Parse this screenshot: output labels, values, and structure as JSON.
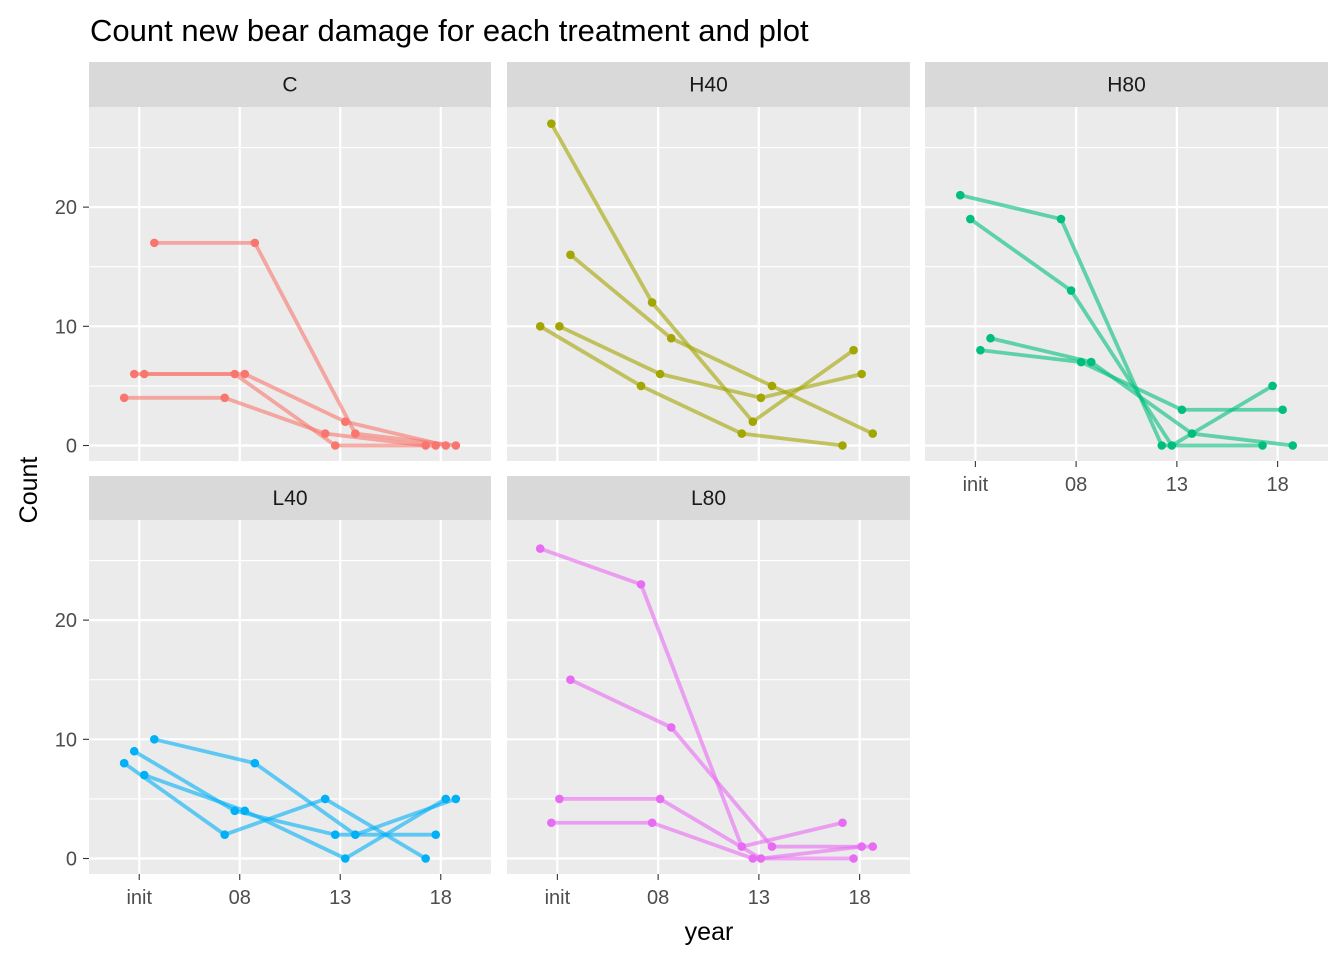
{
  "chart_data": {
    "type": "line",
    "title": "Count new bear damage for each treatment and plot",
    "xlabel": "year",
    "ylabel": "Count",
    "x_categories": [
      "init",
      "08",
      "13",
      "18"
    ],
    "y_ticks": [
      0,
      10,
      20
    ],
    "ylim": [
      -1.3,
      28.4
    ],
    "grid": true,
    "legend": "none",
    "series_colors": {
      "C": "#F8766D",
      "H40": "#A3A500",
      "H80": "#00BF7D",
      "L40": "#00B0F6",
      "L80": "#E76BF3"
    },
    "panels": [
      {
        "name": "C",
        "lines": [
          {
            "points": [
              [
                -0.15,
                4
              ],
              [
                0.85,
                4
              ],
              [
                1.85,
                1
              ],
              [
                2.85,
                0
              ]
            ]
          },
          {
            "points": [
              [
                -0.05,
                6
              ],
              [
                0.95,
                6
              ],
              [
                1.95,
                0
              ],
              [
                2.95,
                0
              ]
            ]
          },
          {
            "points": [
              [
                0.05,
                6
              ],
              [
                1.05,
                6
              ],
              [
                2.05,
                2
              ],
              [
                3.05,
                0
              ]
            ]
          },
          {
            "points": [
              [
                0.15,
                17
              ],
              [
                1.15,
                17
              ],
              [
                2.15,
                1
              ],
              [
                3.15,
                0
              ]
            ]
          }
        ]
      },
      {
        "name": "H40",
        "lines": [
          {
            "points": [
              [
                -0.17,
                10
              ],
              [
                0.83,
                5
              ],
              [
                1.83,
                1
              ],
              [
                2.83,
                0
              ]
            ]
          },
          {
            "points": [
              [
                -0.06,
                27
              ],
              [
                0.94,
                12
              ],
              [
                1.94,
                2
              ],
              [
                2.94,
                8
              ]
            ]
          },
          {
            "points": [
              [
                0.02,
                10
              ],
              [
                1.02,
                6
              ],
              [
                2.02,
                4
              ],
              [
                3.02,
                6
              ]
            ]
          },
          {
            "points": [
              [
                0.13,
                16
              ],
              [
                1.13,
                9
              ],
              [
                2.13,
                5
              ],
              [
                3.13,
                1
              ]
            ]
          }
        ]
      },
      {
        "name": "H80",
        "lines": [
          {
            "points": [
              [
                -0.15,
                21
              ],
              [
                0.85,
                19
              ],
              [
                1.85,
                0
              ],
              [
                2.85,
                0
              ]
            ]
          },
          {
            "points": [
              [
                -0.05,
                19
              ],
              [
                0.95,
                13
              ],
              [
                1.95,
                0
              ],
              [
                2.95,
                5
              ]
            ]
          },
          {
            "points": [
              [
                0.05,
                8
              ],
              [
                1.05,
                7
              ],
              [
                2.05,
                3
              ],
              [
                3.05,
                3
              ]
            ]
          },
          {
            "points": [
              [
                0.15,
                9
              ],
              [
                1.15,
                7
              ],
              [
                2.15,
                1
              ],
              [
                3.15,
                0
              ]
            ]
          }
        ]
      },
      {
        "name": "L40",
        "lines": [
          {
            "points": [
              [
                -0.15,
                8
              ],
              [
                0.85,
                2
              ],
              [
                1.85,
                5
              ],
              [
                2.85,
                0
              ]
            ]
          },
          {
            "points": [
              [
                -0.05,
                9
              ],
              [
                0.95,
                4
              ],
              [
                1.95,
                2
              ],
              [
                2.95,
                2
              ]
            ]
          },
          {
            "points": [
              [
                0.05,
                7
              ],
              [
                1.05,
                4
              ],
              [
                2.05,
                0
              ],
              [
                3.05,
                5
              ]
            ]
          },
          {
            "points": [
              [
                0.15,
                10
              ],
              [
                1.15,
                8
              ],
              [
                2.15,
                2
              ],
              [
                3.15,
                5
              ]
            ]
          }
        ]
      },
      {
        "name": "L80",
        "lines": [
          {
            "points": [
              [
                -0.17,
                26
              ],
              [
                0.83,
                23
              ],
              [
                1.83,
                1
              ],
              [
                2.83,
                3
              ]
            ]
          },
          {
            "points": [
              [
                -0.06,
                3
              ],
              [
                0.94,
                3
              ],
              [
                1.94,
                0
              ],
              [
                2.94,
                0
              ]
            ]
          },
          {
            "points": [
              [
                0.02,
                5
              ],
              [
                1.02,
                5
              ],
              [
                2.02,
                0
              ],
              [
                3.02,
                1
              ]
            ]
          },
          {
            "points": [
              [
                0.13,
                15
              ],
              [
                1.13,
                11
              ],
              [
                2.13,
                1
              ],
              [
                3.13,
                1
              ]
            ]
          }
        ]
      }
    ]
  }
}
